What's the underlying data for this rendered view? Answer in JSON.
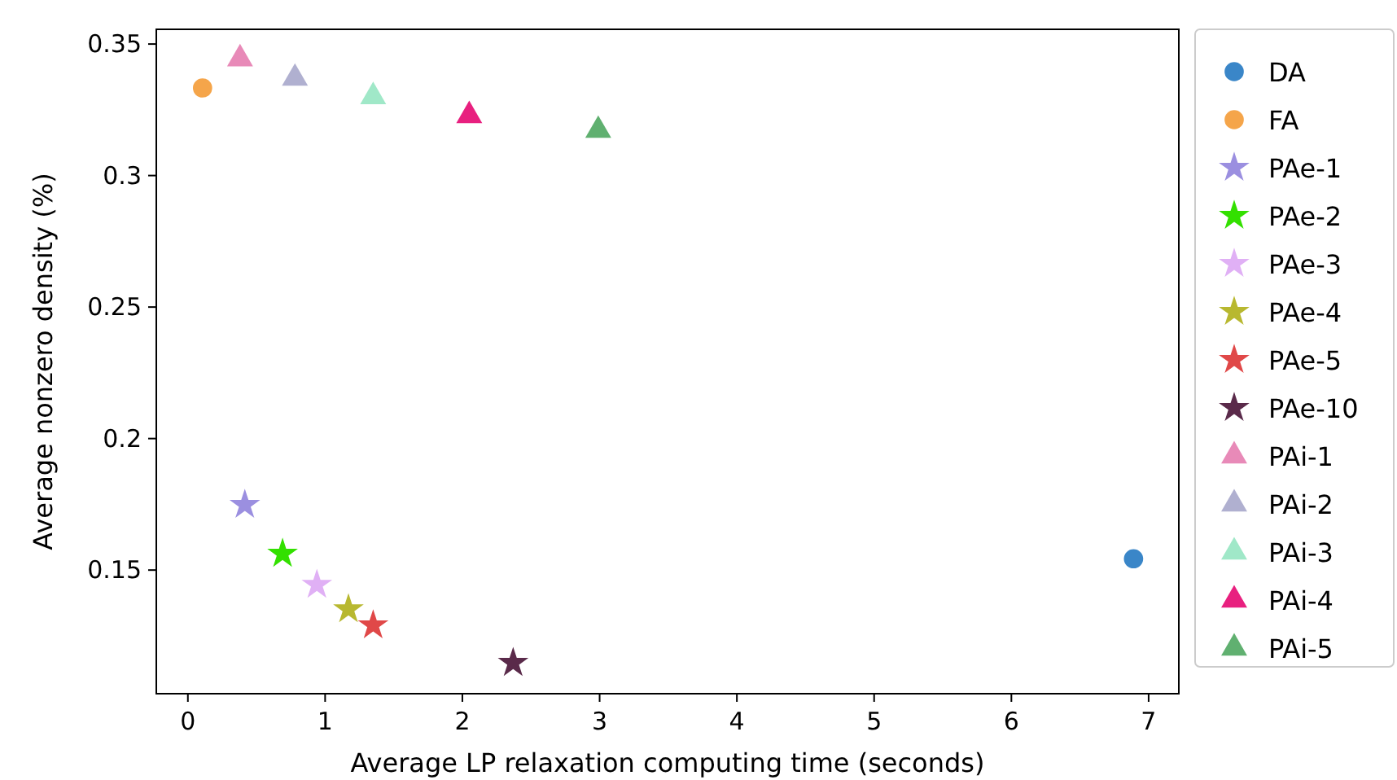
{
  "chart_data": {
    "type": "scatter",
    "xlabel": "Average LP relaxation computing time (seconds)",
    "ylabel": "Average nonzero density (%)",
    "xlim": [
      -0.23,
      7.22
    ],
    "ylim": [
      0.103,
      0.3556
    ],
    "xticks": [
      0,
      1,
      2,
      3,
      4,
      5,
      6,
      7
    ],
    "yticks": [
      0.15,
      0.2,
      0.25,
      0.3,
      0.35
    ],
    "grid": false,
    "legend": "right",
    "series": [
      {
        "name": "DA",
        "color": "#3a86c8",
        "marker": "circle",
        "x": [
          6.89
        ],
        "values": [
          0.1543
        ]
      },
      {
        "name": "FA",
        "color": "#f5a54a",
        "marker": "circle",
        "x": [
          0.107
        ],
        "values": [
          0.3333
        ]
      },
      {
        "name": "PAe-1",
        "color": "#9b8fe0",
        "marker": "star",
        "x": [
          0.415
        ],
        "values": [
          0.1748
        ]
      },
      {
        "name": "PAe-2",
        "color": "#33e000",
        "marker": "star",
        "x": [
          0.69
        ],
        "values": [
          0.1562
        ]
      },
      {
        "name": "PAe-3",
        "color": "#e0b0f5",
        "marker": "star",
        "x": [
          0.94
        ],
        "values": [
          0.1444
        ]
      },
      {
        "name": "PAe-4",
        "color": "#b8b830",
        "marker": "star",
        "x": [
          1.17
        ],
        "values": [
          0.1351
        ]
      },
      {
        "name": "PAe-5",
        "color": "#e04848",
        "marker": "star",
        "x": [
          1.35
        ],
        "values": [
          0.129
        ]
      },
      {
        "name": "PAe-10",
        "color": "#5a2a4a",
        "marker": "star",
        "x": [
          2.37
        ],
        "values": [
          0.1147
        ]
      },
      {
        "name": "PAi-1",
        "color": "#e88ab8",
        "marker": "triangle",
        "x": [
          0.38
        ],
        "values": [
          0.3444
        ]
      },
      {
        "name": "PAi-2",
        "color": "#b0b0d0",
        "marker": "triangle",
        "x": [
          0.78
        ],
        "values": [
          0.337
        ]
      },
      {
        "name": "PAi-3",
        "color": "#a0e8c8",
        "marker": "triangle",
        "x": [
          1.35
        ],
        "values": [
          0.33
        ]
      },
      {
        "name": "PAi-4",
        "color": "#e8207f",
        "marker": "triangle",
        "x": [
          2.05
        ],
        "values": [
          0.3228
        ]
      },
      {
        "name": "PAi-5",
        "color": "#60b070",
        "marker": "triangle",
        "x": [
          2.99
        ],
        "values": [
          0.3172
        ]
      }
    ]
  }
}
